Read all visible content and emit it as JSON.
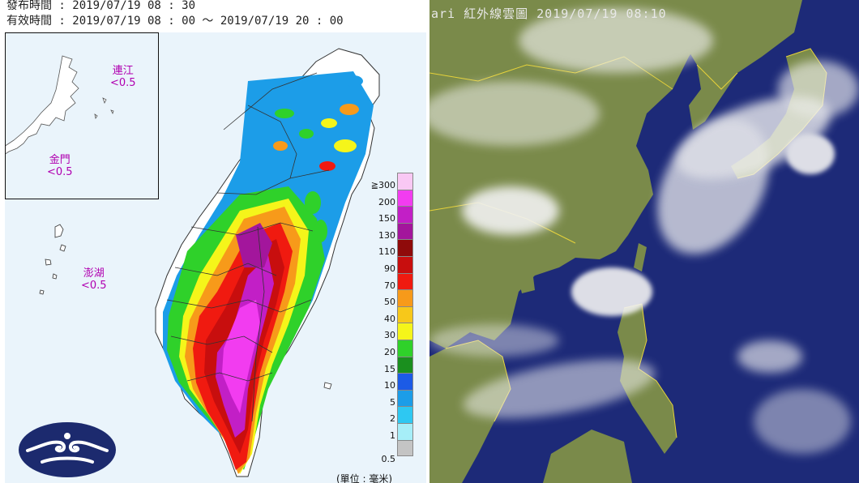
{
  "rain_map": {
    "issue_time": "發布時間 : 2019/07/19 08 : 30",
    "valid_time": "有效時間 : 2019/07/19 08 : 00 ～ 2019/07/19 20 : 00",
    "insets": [
      {
        "name": "連江",
        "value": "<0.5"
      },
      {
        "name": "金門",
        "value": "<0.5"
      },
      {
        "name": "澎湖",
        "value": "<0.5"
      }
    ],
    "legend": {
      "labels": [
        "≧300",
        "200",
        "150",
        "130",
        "110",
        "90",
        "70",
        "50",
        "40",
        "30",
        "20",
        "15",
        "10",
        "5",
        "2",
        "1",
        "0.5"
      ],
      "colors": [
        "#f9c8f4",
        "#f23cf0",
        "#c21fc6",
        "#a3169c",
        "#8f0a0a",
        "#c80e0e",
        "#f01a10",
        "#f79a1a",
        "#f7c81a",
        "#f5f51a",
        "#2fd12a",
        "#1a8f1e",
        "#1c5be6",
        "#1c9de8",
        "#2ec8f2",
        "#a6eef8",
        "#c4c4c4"
      ]
    },
    "unit": "(單位 : 毫米)",
    "logo_icon": "cwb-cloud-logo-icon",
    "land_color": "#ffffff",
    "sea_color": "#eaf4fb"
  },
  "satellite": {
    "title": "ari 紅外線雲圖 2019/07/19  08:10",
    "sea_color": "#1d2a78",
    "land_color": "#7a8a4a",
    "border_color": "#e6d23a"
  }
}
